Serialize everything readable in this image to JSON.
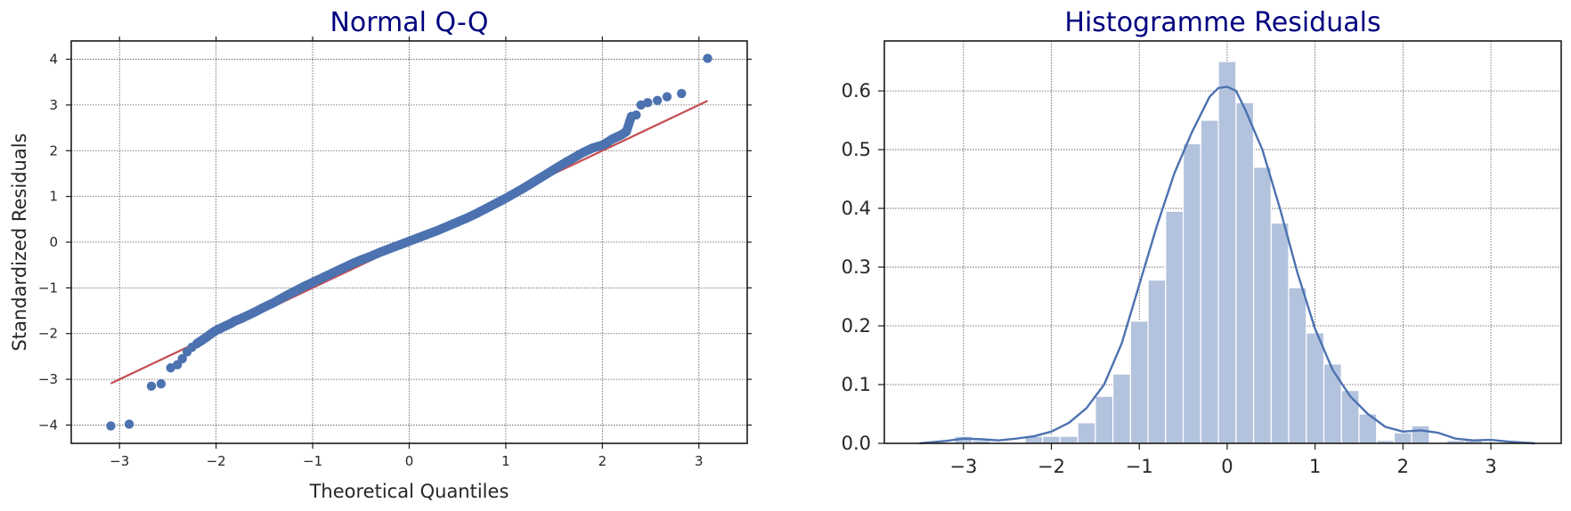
{
  "chart_data": [
    {
      "type": "scatter",
      "title": "Normal Q-Q",
      "xlabel": "Theoretical Quantiles",
      "ylabel": "Standardized Residuals",
      "xlim": [
        -3.5,
        3.5
      ],
      "ylim": [
        -4.4,
        4.4
      ],
      "xticks": [
        -3,
        -2,
        -1,
        0,
        1,
        2,
        3
      ],
      "xtick_labels": [
        "−3",
        "−2",
        "−1",
        "0",
        "1",
        "2",
        "3"
      ],
      "yticks": [
        -4,
        -3,
        -2,
        -1,
        0,
        1,
        2,
        3,
        4
      ],
      "ytick_labels": [
        "−4",
        "−3",
        "−2",
        "−1",
        "0",
        "1",
        "2",
        "3",
        "4"
      ],
      "grid": true,
      "point_color": "#4c72b0",
      "line_color": "#c44e52",
      "points_x": [
        -3.09,
        -2.9,
        -2.67,
        -2.57,
        -2.47,
        -2.4,
        -2.35,
        -2.3,
        -2.25,
        -2.2,
        -2.15,
        -2.1,
        -2.05,
        -2.0,
        -1.95,
        -1.9,
        -1.85,
        -1.8,
        -1.75,
        -1.7,
        -1.6,
        -1.5,
        -1.4,
        -1.3,
        -1.2,
        -1.1,
        -1.0,
        -0.9,
        -0.8,
        -0.7,
        -0.6,
        -0.5,
        -0.4,
        -0.3,
        -0.2,
        -0.1,
        0.0,
        0.1,
        0.2,
        0.3,
        0.4,
        0.5,
        0.6,
        0.7,
        0.8,
        0.9,
        1.0,
        1.1,
        1.2,
        1.3,
        1.4,
        1.5,
        1.6,
        1.7,
        1.8,
        1.9,
        2.0,
        2.05,
        2.1,
        2.15,
        2.2,
        2.25,
        2.3,
        2.35,
        2.4,
        2.47,
        2.57,
        2.67,
        2.82,
        3.09
      ],
      "points_y": [
        -4.02,
        -3.98,
        -3.15,
        -3.1,
        -2.75,
        -2.68,
        -2.55,
        -2.4,
        -2.3,
        -2.22,
        -2.15,
        -2.08,
        -2.0,
        -1.93,
        -1.88,
        -1.83,
        -1.78,
        -1.72,
        -1.68,
        -1.63,
        -1.53,
        -1.42,
        -1.32,
        -1.2,
        -1.09,
        -0.98,
        -0.88,
        -0.78,
        -0.68,
        -0.58,
        -0.48,
        -0.39,
        -0.31,
        -0.22,
        -0.14,
        -0.06,
        0.02,
        0.1,
        0.18,
        0.26,
        0.35,
        0.44,
        0.53,
        0.63,
        0.74,
        0.85,
        0.96,
        1.08,
        1.2,
        1.33,
        1.46,
        1.59,
        1.72,
        1.84,
        1.96,
        2.06,
        2.12,
        2.18,
        2.25,
        2.3,
        2.35,
        2.42,
        2.75,
        2.78,
        3.0,
        3.05,
        3.1,
        3.18,
        3.25,
        4.02
      ],
      "ref_line": {
        "x": [
          -3.09,
          3.09
        ],
        "y": [
          -3.09,
          3.09
        ]
      }
    },
    {
      "type": "bar",
      "title": "Histogramme Residuals",
      "xlabel": "",
      "ylabel": "",
      "xlim": [
        -3.9,
        3.8
      ],
      "ylim": [
        0,
        0.685
      ],
      "xticks": [
        -3,
        -2,
        -1,
        0,
        1,
        2,
        3
      ],
      "xtick_labels": [
        "−3",
        "−2",
        "−1",
        "0",
        "1",
        "2",
        "3"
      ],
      "yticks": [
        0.0,
        0.1,
        0.2,
        0.3,
        0.4,
        0.5,
        0.6
      ],
      "ytick_labels": [
        "0.0",
        "0.1",
        "0.2",
        "0.3",
        "0.4",
        "0.5",
        "0.6"
      ],
      "grid": true,
      "bar_color": "#b3c3de",
      "kde_color": "#4c72b0",
      "bin_edges": [
        -3.1,
        -2.9,
        -2.7,
        -2.5,
        -2.3,
        -2.1,
        -1.9,
        -1.7,
        -1.5,
        -1.3,
        -1.1,
        -0.9,
        -0.7,
        -0.5,
        -0.3,
        -0.1,
        0.1,
        0.3,
        0.5,
        0.7,
        0.9,
        1.1,
        1.3,
        1.5,
        1.7,
        1.9,
        2.1,
        2.3,
        2.5,
        2.7,
        2.9,
        3.1
      ],
      "values": [
        0.012,
        0.005,
        0.0,
        0.0,
        0.012,
        0.012,
        0.012,
        0.035,
        0.08,
        0.118,
        0.208,
        0.278,
        0.395,
        0.51,
        0.55,
        0.65,
        0.58,
        0.47,
        0.375,
        0.265,
        0.188,
        0.135,
        0.09,
        0.05,
        0.005,
        0.018,
        0.03,
        0.0,
        0.005,
        0.005,
        0.0
      ],
      "kde_x": [
        -3.5,
        -3.2,
        -3.0,
        -2.8,
        -2.6,
        -2.4,
        -2.2,
        -2.0,
        -1.8,
        -1.6,
        -1.4,
        -1.2,
        -1.0,
        -0.8,
        -0.6,
        -0.4,
        -0.2,
        -0.1,
        0.0,
        0.1,
        0.2,
        0.4,
        0.6,
        0.8,
        1.0,
        1.2,
        1.4,
        1.6,
        1.8,
        2.0,
        2.2,
        2.4,
        2.6,
        2.8,
        3.0,
        3.2,
        3.5
      ],
      "kde_y": [
        0.0,
        0.004,
        0.008,
        0.007,
        0.005,
        0.008,
        0.012,
        0.02,
        0.035,
        0.06,
        0.1,
        0.17,
        0.27,
        0.37,
        0.46,
        0.53,
        0.59,
        0.605,
        0.607,
        0.6,
        0.57,
        0.5,
        0.4,
        0.29,
        0.195,
        0.125,
        0.08,
        0.05,
        0.028,
        0.02,
        0.022,
        0.018,
        0.008,
        0.005,
        0.006,
        0.003,
        0.0
      ]
    }
  ]
}
